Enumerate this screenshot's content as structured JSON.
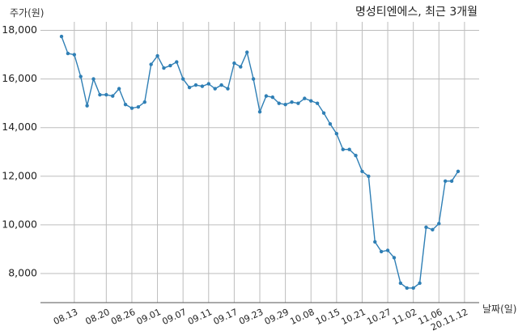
{
  "chart_data": {
    "type": "line",
    "title": "명성티엔에스, 최근 3개월",
    "xlabel": "날짜(일)",
    "ylabel": "주가(원)",
    "ylim": [
      6800,
      18350
    ],
    "yticks": [
      {
        "value": 8000,
        "label": "8,000"
      },
      {
        "value": 10000,
        "label": "10,000"
      },
      {
        "value": 12000,
        "label": "12,000"
      },
      {
        "value": 14000,
        "label": "14,000"
      },
      {
        "value": 16000,
        "label": "16,000"
      },
      {
        "value": 18000,
        "label": "18,000"
      }
    ],
    "xticks": [
      {
        "index": 2,
        "label": "08.13"
      },
      {
        "index": 7,
        "label": "08.20"
      },
      {
        "index": 11,
        "label": "08.26"
      },
      {
        "index": 15,
        "label": "09.01"
      },
      {
        "index": 19,
        "label": "09.07"
      },
      {
        "index": 23,
        "label": "09.11"
      },
      {
        "index": 27,
        "label": "09.17"
      },
      {
        "index": 31,
        "label": "09.23"
      },
      {
        "index": 35,
        "label": "09.29"
      },
      {
        "index": 39,
        "label": "10.08"
      },
      {
        "index": 43,
        "label": "10.15"
      },
      {
        "index": 47,
        "label": "10.21"
      },
      {
        "index": 51,
        "label": "10.27"
      },
      {
        "index": 55,
        "label": "11.02"
      },
      {
        "index": 59,
        "label": "11.06"
      },
      {
        "index": 63,
        "label": "20.11.12"
      }
    ],
    "grid": true,
    "series": [
      {
        "color": "#2f7fb5",
        "values": [
          17750,
          17050,
          17000,
          16100,
          14900,
          16000,
          15350,
          15350,
          15300,
          15600,
          14950,
          14800,
          14850,
          15050,
          16600,
          16950,
          16450,
          16550,
          16700,
          16000,
          15650,
          15750,
          15700,
          15800,
          15600,
          15750,
          15600,
          16650,
          16500,
          17100,
          16000,
          14650,
          15300,
          15250,
          15000,
          14950,
          15050,
          15000,
          15200,
          15100,
          15000,
          14600,
          14150,
          13750,
          13100,
          13100,
          12850,
          12200,
          12000,
          9300,
          8900,
          8950,
          8650,
          7600,
          7400,
          7400,
          7600,
          9900,
          9800,
          10050,
          11800,
          11800,
          12200
        ]
      }
    ]
  }
}
